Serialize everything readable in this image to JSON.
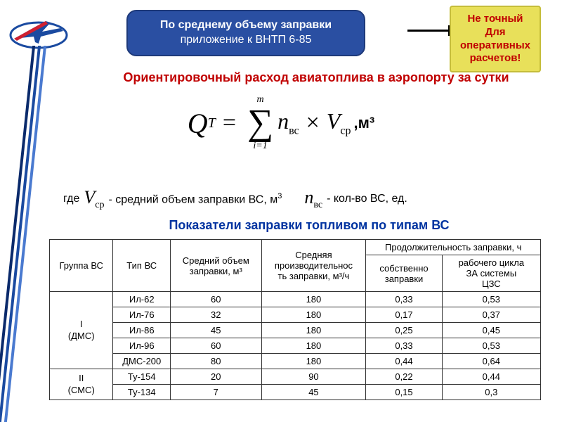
{
  "title": {
    "line1": "По среднему объему заправки",
    "line2": "приложение к ВНТП 6-85",
    "bg": "#2a4fa2",
    "text_color": "#ffffff"
  },
  "callout": {
    "line1": "Не точный",
    "line2": "Для",
    "line3": "оперативных",
    "line4": "расчетов!",
    "bg": "#e8e05a",
    "text_color": "#c00000"
  },
  "red_heading": "Ориентировочный расход авиатоплива в аэропорту за сутки",
  "formula": {
    "lhs_var": "Q",
    "lhs_sup": "T",
    "sum_upper": "m",
    "sum_lower": "i=1",
    "term1": "n",
    "term1_sub": "вс",
    "times": "×",
    "term2": "V",
    "term2_sub": "ср",
    "unit": ",м³"
  },
  "where": {
    "prefix": "где",
    "sym1": "V",
    "sym1_sub": "ср",
    "desc1": " - средний объем заправки ВС, м",
    "desc1_sup": "3",
    "sym2": "n",
    "sym2_sub": "вс",
    "desc2": "- кол-во  ВС, ед."
  },
  "blue_heading": "Показатели заправки топливом по типам ВС",
  "table": {
    "headers": {
      "c1": "Группа ВС",
      "c2": "Тип ВС",
      "c3_l1": "Средний объем",
      "c3_l2": "заправки, м³",
      "c4_l1": "Средняя",
      "c4_l2": "производительнос",
      "c4_l3": "ть заправки, м³/ч",
      "c5": "Продолжительность заправки, ч",
      "c5a_l1": "собственно",
      "c5a_l2": "заправки",
      "c5b_l1": "рабочего цикла",
      "c5b_l2": "ЗА системы",
      "c5b_l3": "ЦЗС"
    },
    "groups": [
      {
        "label_l1": "I",
        "label_l2": "(ДМС)",
        "rows": [
          {
            "type": "Ил-62",
            "vol": "60",
            "rate": "180",
            "t1": "0,33",
            "t2": "0,53"
          },
          {
            "type": "Ил-76",
            "vol": "32",
            "rate": "180",
            "t1": "0,17",
            "t2": "0,37"
          },
          {
            "type": "Ил-86",
            "vol": "45",
            "rate": "180",
            "t1": "0,25",
            "t2": "0,45"
          },
          {
            "type": "Ил-96",
            "vol": "60",
            "rate": "180",
            "t1": "0,33",
            "t2": "0,53"
          },
          {
            "type": "ДМС-200",
            "vol": "80",
            "rate": "180",
            "t1": "0,44",
            "t2": "0,64"
          }
        ]
      },
      {
        "label_l1": "II",
        "label_l2": "(СМС)",
        "rows": [
          {
            "type": "Ту-154",
            "vol": "20",
            "rate": "90",
            "t1": "0,22",
            "t2": "0,44"
          },
          {
            "type": "Ту-134",
            "vol": "7",
            "rate": "45",
            "t1": "0,15",
            "t2": "0,3"
          }
        ]
      }
    ]
  },
  "colors": {
    "red": "#c00000",
    "blue": "#0033a0",
    "stripe1": "#0a2a6b",
    "stripe2": "#1a4aa0",
    "stripe3": "#4a7ad0"
  }
}
